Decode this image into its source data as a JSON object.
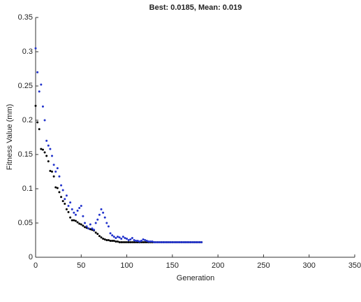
{
  "chart_data": {
    "type": "scatter",
    "title": "Best: 0.0185, Mean: 0.019",
    "x_label": "Generation",
    "y_label": "Fitness Value (mm)",
    "x": [
      0,
      2,
      4,
      6,
      8,
      10,
      12,
      14,
      16,
      18,
      20,
      22,
      24,
      26,
      28,
      30,
      32,
      34,
      36,
      38,
      40,
      42,
      44,
      46,
      48,
      50,
      52,
      54,
      56,
      58,
      60,
      62,
      64,
      66,
      68,
      70,
      72,
      74,
      76,
      78,
      80,
      82,
      84,
      86,
      88,
      90,
      92,
      94,
      96,
      98,
      100,
      102,
      104,
      106,
      108,
      110,
      112,
      114,
      116,
      118,
      120,
      122,
      124,
      126,
      128,
      130,
      132,
      134,
      136,
      138,
      140,
      142,
      144,
      146,
      148,
      150,
      152,
      154,
      156,
      158,
      160,
      162,
      164,
      166,
      168,
      170,
      172,
      174,
      176,
      178,
      180,
      182
    ],
    "series": [
      {
        "color": "#000000",
        "values": [
          0.221,
          0.197,
          0.187,
          0.158,
          0.157,
          0.153,
          0.148,
          0.14,
          0.126,
          0.125,
          0.118,
          0.102,
          0.101,
          0.095,
          0.088,
          0.082,
          0.078,
          0.07,
          0.066,
          0.058,
          0.054,
          0.054,
          0.053,
          0.051,
          0.049,
          0.048,
          0.046,
          0.044,
          0.043,
          0.042,
          0.041,
          0.04,
          0.039,
          0.036,
          0.034,
          0.031,
          0.029,
          0.027,
          0.026,
          0.025,
          0.025,
          0.024,
          0.024,
          0.024,
          0.023,
          0.023,
          0.022,
          0.022,
          0.022,
          0.022,
          0.022,
          0.022,
          0.022,
          0.022,
          0.022,
          0.022,
          0.022,
          0.022,
          0.022,
          0.022,
          0.022,
          0.022,
          0.022,
          0.022,
          0.022,
          0.022,
          0.022,
          0.022,
          0.022,
          0.022,
          0.022,
          0.022,
          0.022,
          0.022,
          0.022,
          0.022,
          0.022,
          0.022,
          0.022,
          0.022,
          0.022,
          0.022,
          0.022,
          0.022,
          0.022,
          0.022,
          0.022,
          0.022,
          0.022,
          0.022,
          0.022,
          0.022
        ]
      },
      {
        "color": "#2233cc",
        "values": [
          0.305,
          0.27,
          0.242,
          0.252,
          0.22,
          0.2,
          0.17,
          0.163,
          0.158,
          0.148,
          0.135,
          0.125,
          0.13,
          0.118,
          0.105,
          0.098,
          0.085,
          0.09,
          0.075,
          0.08,
          0.07,
          0.065,
          0.062,
          0.068,
          0.072,
          0.075,
          0.06,
          0.05,
          0.045,
          0.042,
          0.048,
          0.042,
          0.04,
          0.05,
          0.055,
          0.062,
          0.07,
          0.065,
          0.058,
          0.05,
          0.045,
          0.035,
          0.032,
          0.03,
          0.028,
          0.03,
          0.029,
          0.027,
          0.03,
          0.028,
          0.027,
          0.025,
          0.026,
          0.028,
          0.025,
          0.024,
          0.024,
          0.023,
          0.024,
          0.026,
          0.025,
          0.024,
          0.023,
          0.023,
          0.023,
          0.022,
          0.022,
          0.022,
          0.022,
          0.022,
          0.022,
          0.022,
          0.022,
          0.022,
          0.022,
          0.022,
          0.022,
          0.022,
          0.022,
          0.022,
          0.022,
          0.022,
          0.022,
          0.022,
          0.022,
          0.022,
          0.022,
          0.022,
          0.022,
          0.022,
          0.022,
          0.022
        ]
      }
    ],
    "xlim": [
      0,
      350
    ],
    "ylim": [
      0,
      0.35
    ],
    "xticks": [
      0,
      50,
      100,
      150,
      200,
      250,
      300,
      350
    ],
    "yticks": [
      0,
      0.05,
      0.1,
      0.15,
      0.2,
      0.25,
      0.3,
      0.35
    ],
    "grid": false
  }
}
